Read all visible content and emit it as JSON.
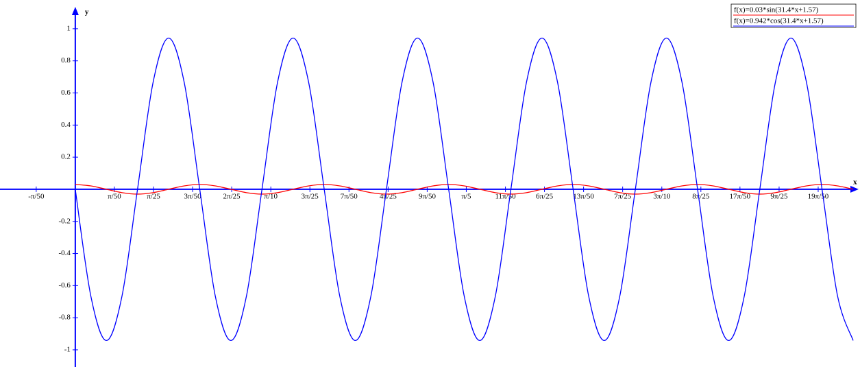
{
  "chart_data": {
    "type": "line",
    "x_label": "x",
    "y_label": "y",
    "xlim": [
      -0.121,
      1.261
    ],
    "ylim": [
      -1.107,
      1.179
    ],
    "legend": "top-right",
    "xticks": [
      {
        "value": -0.0628,
        "label": "-π/50"
      },
      {
        "value": 0.0628,
        "label": "π/50"
      },
      {
        "value": 0.1257,
        "label": "π/25"
      },
      {
        "value": 0.1885,
        "label": "3π/50"
      },
      {
        "value": 0.2513,
        "label": "2π/25"
      },
      {
        "value": 0.3142,
        "label": "π/10"
      },
      {
        "value": 0.377,
        "label": "3π/25"
      },
      {
        "value": 0.4398,
        "label": "7π/50"
      },
      {
        "value": 0.5027,
        "label": "4π/25"
      },
      {
        "value": 0.5655,
        "label": "9π/50"
      },
      {
        "value": 0.6283,
        "label": "π/5"
      },
      {
        "value": 0.6912,
        "label": "11π/50"
      },
      {
        "value": 0.754,
        "label": "6π/25"
      },
      {
        "value": 0.8168,
        "label": "13π/50"
      },
      {
        "value": 0.8796,
        "label": "7π/25"
      },
      {
        "value": 0.9425,
        "label": "3π/10"
      },
      {
        "value": 1.0053,
        "label": "8π/25"
      },
      {
        "value": 1.0681,
        "label": "17π/50"
      },
      {
        "value": 1.131,
        "label": "9π/25"
      },
      {
        "value": 1.1938,
        "label": "19π/50"
      }
    ],
    "yticks": [
      -1,
      -0.8,
      -0.6,
      -0.4,
      -0.2,
      0.2,
      0.4,
      0.6,
      0.8,
      1
    ],
    "x": [
      0,
      0.025,
      0.05,
      0.075,
      0.1,
      0.125,
      0.15,
      0.175,
      0.2,
      0.225,
      0.25,
      0.275,
      0.3,
      0.325,
      0.35,
      0.375,
      0.4,
      0.425,
      0.45,
      0.475,
      0.5,
      0.525,
      0.55,
      0.575,
      0.6,
      0.625,
      0.65,
      0.675,
      0.7,
      0.725,
      0.75,
      0.775,
      0.8,
      0.825,
      0.85,
      0.875,
      0.9,
      0.925,
      0.95,
      0.975,
      1,
      1.025,
      1.05,
      1.075,
      1.1,
      1.125,
      1.15,
      1.175,
      1.2,
      1.225,
      1.25
    ],
    "series": [
      {
        "name": "f(x)=0.03*sin(31.4*x+1.57)",
        "color": "#ff0000",
        "values": [
          0.03,
          0.021,
          0,
          -0.021,
          -0.03,
          -0.021,
          0,
          0.021,
          0.03,
          0.021,
          0,
          -0.021,
          -0.03,
          -0.021,
          0,
          0.021,
          0.03,
          0.021,
          0,
          -0.021,
          -0.03,
          -0.021,
          0,
          0.021,
          0.03,
          0.021,
          0,
          -0.021,
          -0.03,
          -0.021,
          0,
          0.021,
          0.03,
          0.021,
          0,
          -0.021,
          -0.03,
          -0.021,
          0,
          0.021,
          0.03,
          0.021,
          0,
          -0.021,
          -0.03,
          -0.021,
          0,
          0.021,
          0.03,
          0.021,
          0
        ]
      },
      {
        "name": "f(x)=0.942*cos(31.4*x+1.57)",
        "color": "#0000ff",
        "values": [
          0,
          -0.666,
          -0.942,
          -0.666,
          0,
          0.666,
          0.942,
          0.666,
          0,
          -0.666,
          -0.942,
          -0.666,
          0,
          0.666,
          0.942,
          0.666,
          0,
          -0.666,
          -0.942,
          -0.666,
          0,
          0.666,
          0.942,
          0.666,
          0,
          -0.666,
          -0.942,
          -0.666,
          0,
          0.666,
          0.942,
          0.666,
          0,
          -0.666,
          -0.942,
          -0.666,
          0,
          0.666,
          0.942,
          0.666,
          0,
          -0.666,
          -0.942,
          -0.666,
          0,
          0.666,
          0.942,
          0.666,
          0,
          -0.666,
          -0.942
        ]
      }
    ]
  }
}
